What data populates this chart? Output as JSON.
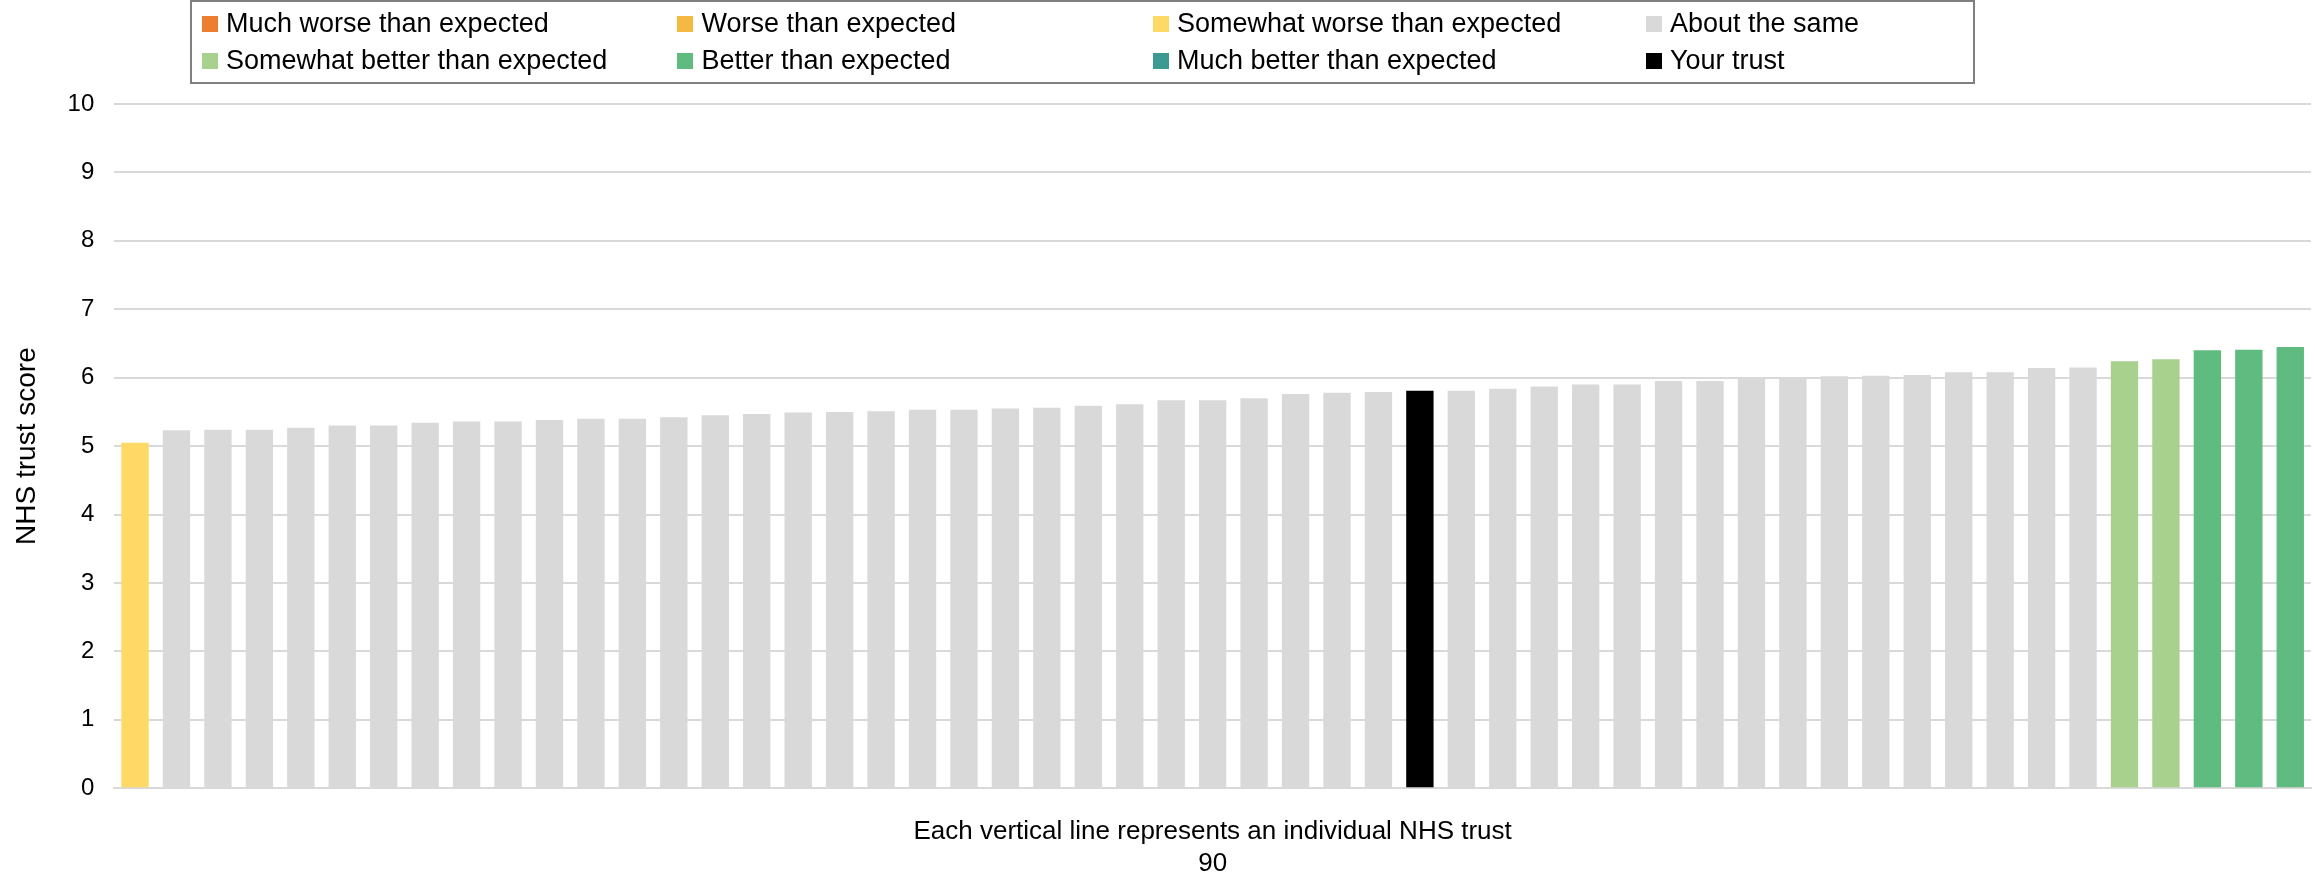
{
  "chart_data": {
    "type": "bar",
    "stacked": true,
    "ylabel": "NHS trust score",
    "xlabel": "Each vertical line represents an individual NHS trust",
    "annotations": [
      "90"
    ],
    "categories": [
      null,
      null,
      null,
      null,
      null,
      null,
      null,
      null,
      null,
      null,
      null,
      null,
      null,
      null,
      null,
      null,
      null,
      null,
      null,
      null,
      null,
      null,
      null,
      null,
      null,
      null,
      null,
      null,
      null,
      null,
      null,
      null,
      null,
      null,
      null,
      null,
      null,
      null,
      null,
      null,
      null,
      null,
      null,
      null,
      null,
      null,
      null,
      null,
      null,
      null,
      null,
      null,
      null
    ],
    "series": [
      {
        "name": "Much worse than expected",
        "color": "#ed7d31",
        "values": [
          null,
          null,
          null,
          null,
          null,
          null,
          null,
          null,
          null,
          null,
          null,
          null,
          null,
          null,
          null,
          null,
          null,
          null,
          null,
          null,
          null,
          null,
          null,
          null,
          null,
          null,
          null,
          null,
          null,
          null,
          null,
          null,
          null,
          null,
          null,
          null,
          null,
          null,
          null,
          null,
          null,
          null,
          null,
          null,
          null,
          null,
          null,
          null,
          null,
          null,
          null,
          null,
          null
        ]
      },
      {
        "name": "Worse than expected",
        "color": "#f4b942",
        "values": [
          null,
          null,
          null,
          null,
          null,
          null,
          null,
          null,
          null,
          null,
          null,
          null,
          null,
          null,
          null,
          null,
          null,
          null,
          null,
          null,
          null,
          null,
          null,
          null,
          null,
          null,
          null,
          null,
          null,
          null,
          null,
          null,
          null,
          null,
          null,
          null,
          null,
          null,
          null,
          null,
          null,
          null,
          null,
          null,
          null,
          null,
          null,
          null,
          null,
          null,
          null,
          null,
          null
        ]
      },
      {
        "name": "Somewhat worse than expected",
        "color": "#ffd966",
        "values": [
          5.05,
          null,
          null,
          null,
          null,
          null,
          null,
          null,
          null,
          null,
          null,
          null,
          null,
          null,
          null,
          null,
          null,
          null,
          null,
          null,
          null,
          null,
          null,
          null,
          null,
          null,
          null,
          null,
          null,
          null,
          null,
          null,
          null,
          null,
          null,
          null,
          null,
          null,
          null,
          null,
          null,
          null,
          null,
          null,
          null,
          null,
          null,
          null,
          null,
          null,
          null,
          null,
          null
        ]
      },
      {
        "name": "About the same",
        "color": "#d9d9d9",
        "values": [
          null,
          5.23,
          5.24,
          5.24,
          5.27,
          5.3,
          5.3,
          5.34,
          5.36,
          5.36,
          5.38,
          5.4,
          5.4,
          5.42,
          5.45,
          5.47,
          5.49,
          5.5,
          5.51,
          5.53,
          5.53,
          5.55,
          5.56,
          5.59,
          5.61,
          5.67,
          5.67,
          5.7,
          5.76,
          5.78,
          5.79,
          null,
          5.81,
          5.84,
          5.87,
          5.9,
          5.9,
          5.95,
          5.95,
          5.98,
          5.98,
          6.02,
          6.03,
          6.04,
          6.08,
          6.08,
          6.14,
          6.15,
          null,
          null,
          null,
          null,
          null
        ]
      },
      {
        "name": "Somewhat better than expected",
        "color": "#a9d18e",
        "values": [
          null,
          null,
          null,
          null,
          null,
          null,
          null,
          null,
          null,
          null,
          null,
          null,
          null,
          null,
          null,
          null,
          null,
          null,
          null,
          null,
          null,
          null,
          null,
          null,
          null,
          null,
          null,
          null,
          null,
          null,
          null,
          null,
          null,
          null,
          null,
          null,
          null,
          null,
          null,
          null,
          null,
          null,
          null,
          null,
          null,
          null,
          null,
          null,
          6.24,
          6.27,
          null,
          null,
          null
        ]
      },
      {
        "name": "Better than expected",
        "color": "#5fbb7f",
        "values": [
          null,
          null,
          null,
          null,
          null,
          null,
          null,
          null,
          null,
          null,
          null,
          null,
          null,
          null,
          null,
          null,
          null,
          null,
          null,
          null,
          null,
          null,
          null,
          null,
          null,
          null,
          null,
          null,
          null,
          null,
          null,
          null,
          null,
          null,
          null,
          null,
          null,
          null,
          null,
          null,
          null,
          null,
          null,
          null,
          null,
          null,
          null,
          null,
          null,
          null,
          6.4,
          6.41,
          6.45
        ]
      },
      {
        "name": "Much better than expected",
        "color": "#3d9a93",
        "values": [
          null,
          null,
          null,
          null,
          null,
          null,
          null,
          null,
          null,
          null,
          null,
          null,
          null,
          null,
          null,
          null,
          null,
          null,
          null,
          null,
          null,
          null,
          null,
          null,
          null,
          null,
          null,
          null,
          null,
          null,
          null,
          null,
          null,
          null,
          null,
          null,
          null,
          null,
          null,
          null,
          null,
          null,
          null,
          null,
          null,
          null,
          null,
          null,
          null,
          null,
          null,
          null,
          null
        ]
      },
      {
        "name": "Your trust",
        "color": "#000000",
        "values": [
          null,
          null,
          null,
          null,
          null,
          null,
          null,
          null,
          null,
          null,
          null,
          null,
          null,
          null,
          null,
          null,
          null,
          null,
          null,
          null,
          null,
          null,
          null,
          null,
          null,
          null,
          null,
          null,
          null,
          null,
          null,
          5.81,
          null,
          null,
          null,
          null,
          null,
          null,
          null,
          null,
          null,
          null,
          null,
          null,
          null,
          null,
          null,
          null,
          null,
          null,
          null,
          null,
          null
        ]
      }
    ],
    "ylim": [
      0,
      10
    ],
    "yticks": [
      0,
      1,
      2,
      3,
      4,
      5,
      6,
      7,
      8,
      9,
      10
    ],
    "grid": "y",
    "legend": "top"
  }
}
